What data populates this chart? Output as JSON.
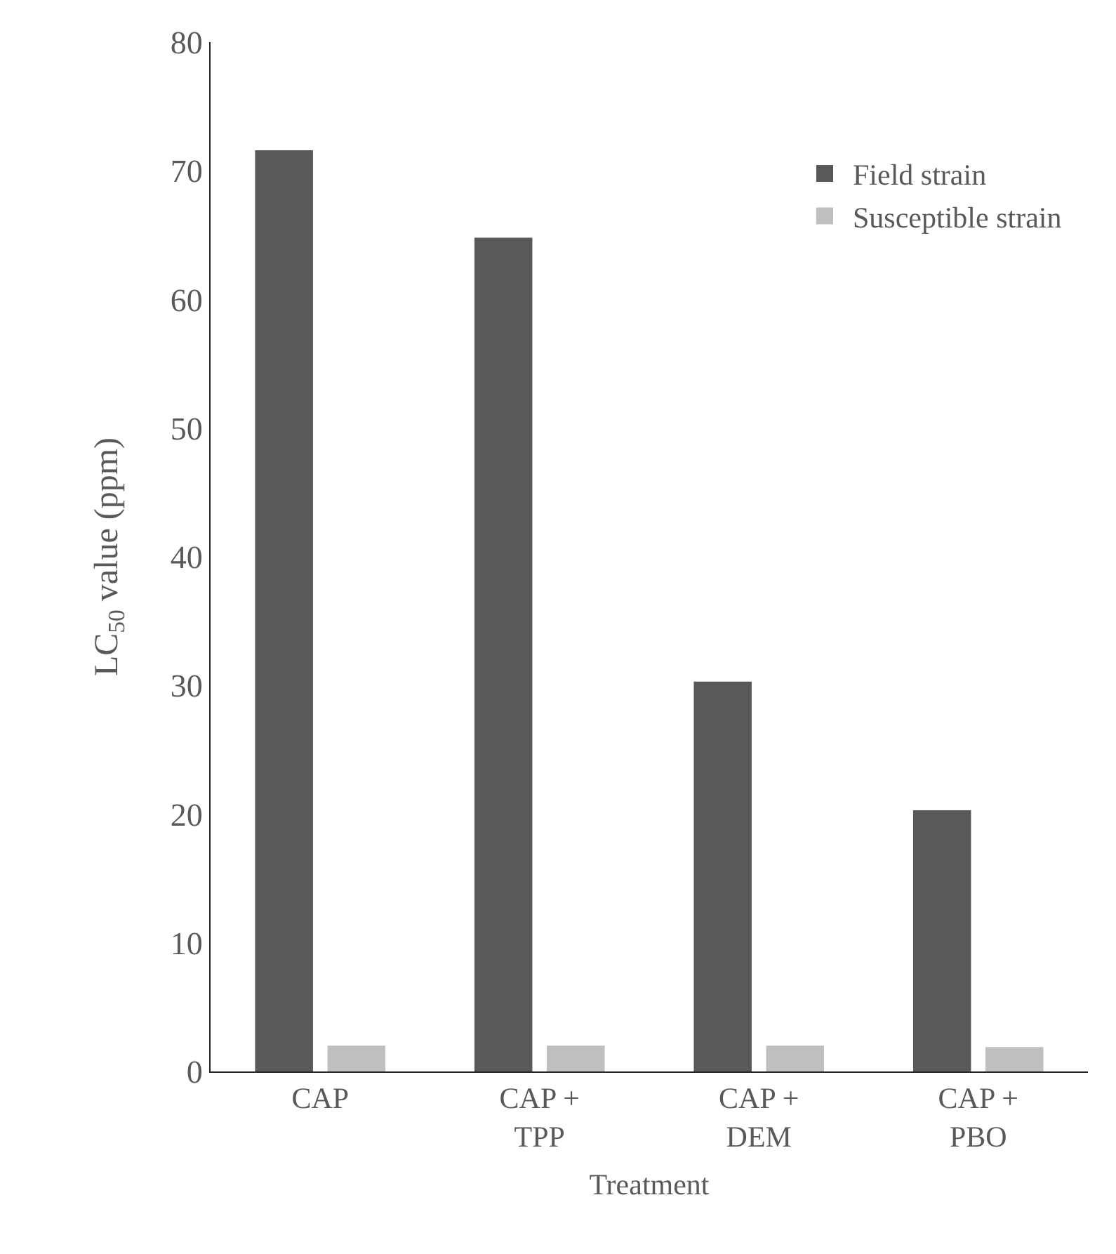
{
  "chart_data": {
    "type": "bar",
    "categories": [
      "CAP",
      "CAP +\nTPP",
      "CAP +\nDEM",
      "CAP +\nPBO"
    ],
    "series": [
      {
        "name": "Field strain",
        "color": "#595959",
        "values": [
          71.6,
          64.8,
          30.3,
          20.3
        ]
      },
      {
        "name": "Susceptible strain",
        "color": "#bfbfbf",
        "values": [
          2.0,
          2.0,
          2.0,
          1.9
        ]
      }
    ],
    "xlabel": "Treatment",
    "ylabel": "LC$_{50}$ value (ppm)",
    "ylim": [
      0,
      80
    ],
    "yticks": [
      0,
      10,
      20,
      30,
      40,
      50,
      60,
      70,
      80
    ],
    "grid": false,
    "legend": "top right"
  }
}
